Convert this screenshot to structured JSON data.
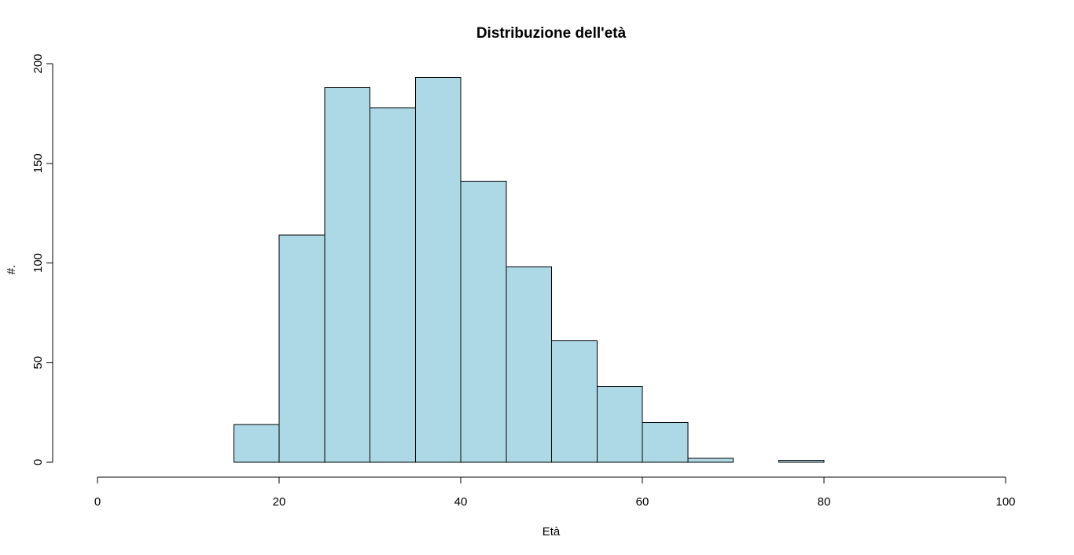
{
  "chart_data": {
    "type": "bar",
    "title": "Distribuzione dell'età",
    "xlabel": "Età",
    "ylabel": "#.",
    "xlim": [
      0,
      100
    ],
    "ylim": [
      0,
      200
    ],
    "x_ticks": [
      0,
      20,
      40,
      60,
      80,
      100
    ],
    "y_ticks": [
      0,
      50,
      100,
      150,
      200
    ],
    "bin_width": 5,
    "bins": [
      {
        "start": 15,
        "end": 20,
        "count": 19
      },
      {
        "start": 20,
        "end": 25,
        "count": 114
      },
      {
        "start": 25,
        "end": 30,
        "count": 188
      },
      {
        "start": 30,
        "end": 35,
        "count": 178
      },
      {
        "start": 35,
        "end": 40,
        "count": 193
      },
      {
        "start": 40,
        "end": 45,
        "count": 141
      },
      {
        "start": 45,
        "end": 50,
        "count": 98
      },
      {
        "start": 50,
        "end": 55,
        "count": 61
      },
      {
        "start": 55,
        "end": 60,
        "count": 38
      },
      {
        "start": 60,
        "end": 65,
        "count": 20
      },
      {
        "start": 65,
        "end": 70,
        "count": 2
      },
      {
        "start": 70,
        "end": 75,
        "count": 0
      },
      {
        "start": 75,
        "end": 80,
        "count": 1
      }
    ],
    "bar_color": "#ADD8E6",
    "border_color": "#000000",
    "grid": false,
    "legend": "none"
  }
}
